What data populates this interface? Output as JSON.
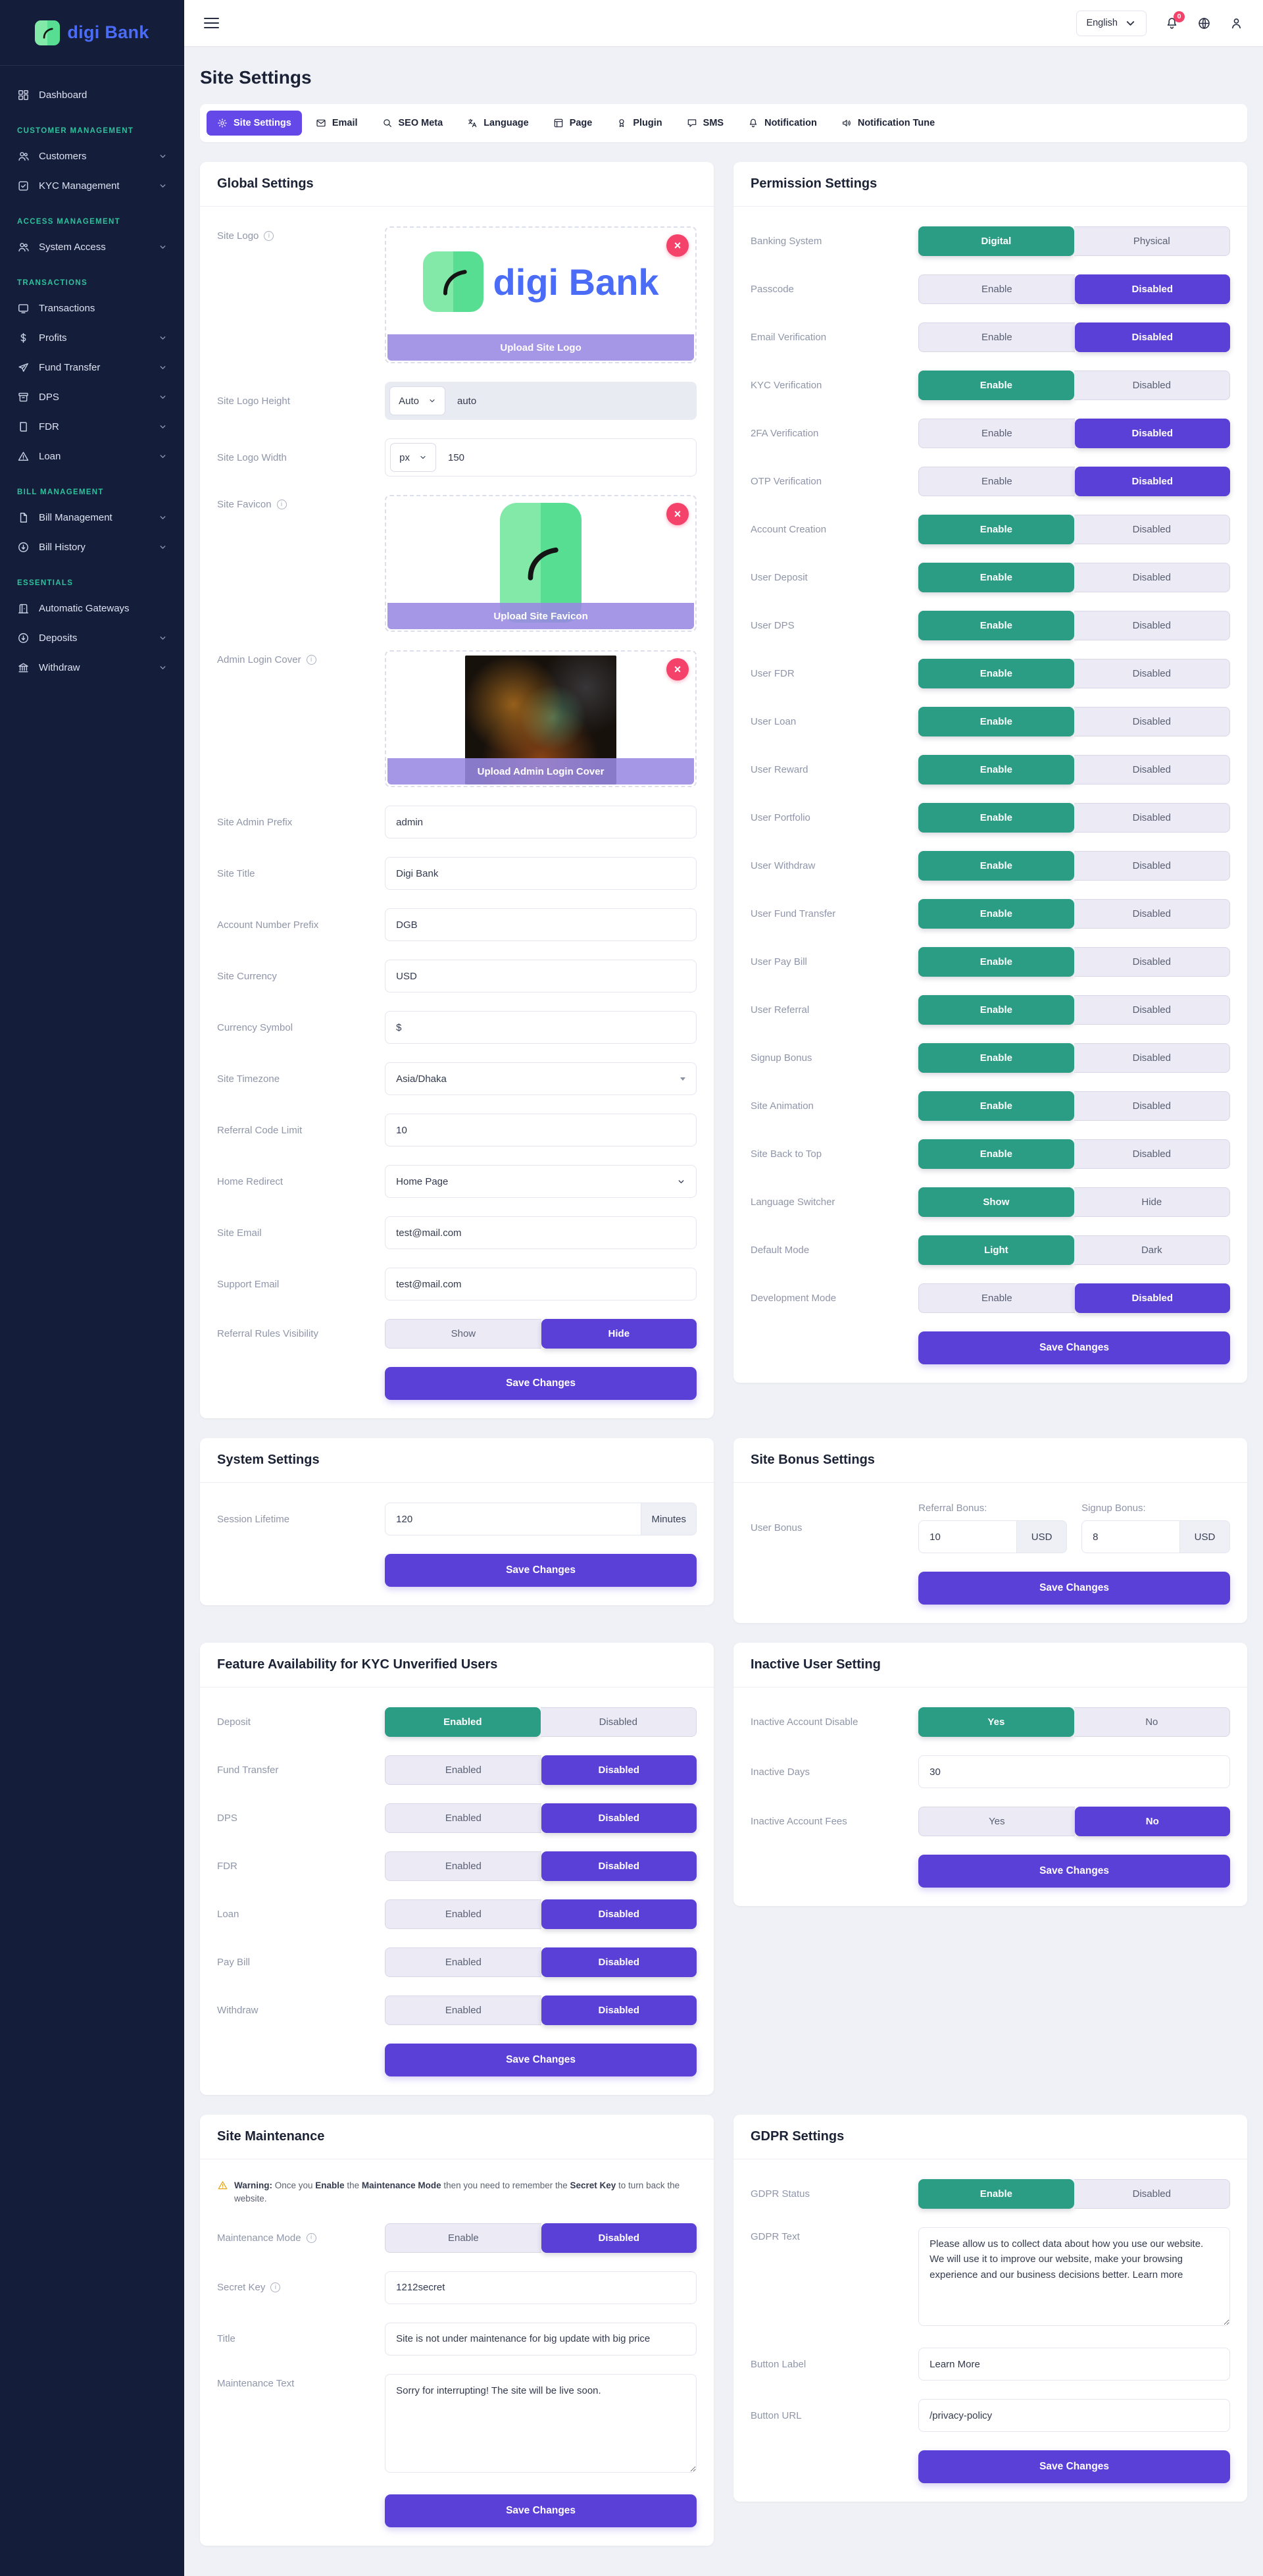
{
  "colors": {
    "accent_purple": "#5b40d8",
    "accent_green": "#2a9d84",
    "brand_blue": "#4a6cf7",
    "danger_red": "#f4426b",
    "section_teal": "#2fc09c",
    "active_tab_purple": "#6448e8"
  },
  "sidebar": {
    "brand": "digi Bank",
    "sections": [
      {
        "header": null,
        "items": [
          {
            "label": "Dashboard",
            "icon": "dashboard",
            "chevron": false
          }
        ]
      },
      {
        "header": "CUSTOMER MANAGEMENT",
        "items": [
          {
            "label": "Customers",
            "icon": "users",
            "chevron": true
          },
          {
            "label": "KYC Management",
            "icon": "kyc",
            "chevron": true
          }
        ]
      },
      {
        "header": "ACCESS MANAGEMENT",
        "items": [
          {
            "label": "System Access",
            "icon": "users",
            "chevron": true
          }
        ]
      },
      {
        "header": "TRANSACTIONS",
        "items": [
          {
            "label": "Transactions",
            "icon": "screen",
            "chevron": false
          },
          {
            "label": "Profits",
            "icon": "dollar",
            "chevron": true
          },
          {
            "label": "Fund Transfer",
            "icon": "send",
            "chevron": true
          },
          {
            "label": "DPS",
            "icon": "archive",
            "chevron": true
          },
          {
            "label": "FDR",
            "icon": "book",
            "chevron": true
          },
          {
            "label": "Loan",
            "icon": "alert",
            "chevron": true
          }
        ]
      },
      {
        "header": "BILL MANAGEMENT",
        "items": [
          {
            "label": "Bill Management",
            "icon": "file",
            "chevron": true
          },
          {
            "label": "Bill History",
            "icon": "download",
            "chevron": true
          }
        ]
      },
      {
        "header": "ESSENTIALS",
        "items": [
          {
            "label": "Automatic Gateways",
            "icon": "gateway",
            "chevron": false
          },
          {
            "label": "Deposits",
            "icon": "download",
            "chevron": true
          },
          {
            "label": "Withdraw",
            "icon": "bank",
            "chevron": true
          }
        ]
      }
    ]
  },
  "topbar": {
    "language": "English",
    "notification_badge": "0"
  },
  "page": {
    "title": "Site Settings"
  },
  "tabs": [
    {
      "label": "Site Settings",
      "icon": "gear",
      "active": true
    },
    {
      "label": "Email",
      "icon": "mail",
      "active": false
    },
    {
      "label": "SEO Meta",
      "icon": "seo",
      "active": false
    },
    {
      "label": "Language",
      "icon": "translate",
      "active": false
    },
    {
      "label": "Page",
      "icon": "page",
      "active": false
    },
    {
      "label": "Plugin",
      "icon": "plugin",
      "active": false
    },
    {
      "label": "SMS",
      "icon": "sms",
      "active": false
    },
    {
      "label": "Notification",
      "icon": "bell",
      "active": false
    },
    {
      "label": "Notification Tune",
      "icon": "speaker",
      "active": false
    }
  ],
  "rows": [
    {
      "left": {
        "title": "Global Settings",
        "save": "Save Changes",
        "fields": [
          {
            "type": "upload",
            "variant": "logo",
            "label": "Site Logo",
            "info": true,
            "ribbon": "Upload Site Logo",
            "preview_text": "digi Bank"
          },
          {
            "type": "unit",
            "label": "Site Logo Height",
            "select": "Auto",
            "value": "auto",
            "disabled": true
          },
          {
            "type": "unit",
            "label": "Site Logo Width",
            "select": "px",
            "value": "150",
            "disabled": false
          },
          {
            "type": "upload",
            "variant": "favicon",
            "label": "Site Favicon",
            "info": true,
            "ribbon": "Upload Site Favicon"
          },
          {
            "type": "upload",
            "variant": "cover",
            "label": "Admin Login Cover",
            "info": true,
            "ribbon": "Upload Admin Login Cover"
          },
          {
            "type": "text",
            "label": "Site Admin Prefix",
            "value": "admin"
          },
          {
            "type": "text",
            "label": "Site Title",
            "value": "Digi Bank"
          },
          {
            "type": "text",
            "label": "Account Number Prefix",
            "value": "DGB"
          },
          {
            "type": "text",
            "label": "Site Currency",
            "value": "USD"
          },
          {
            "type": "text",
            "label": "Currency Symbol",
            "value": "$"
          },
          {
            "type": "select2",
            "label": "Site Timezone",
            "value": "Asia/Dhaka"
          },
          {
            "type": "text",
            "label": "Referral Code Limit",
            "value": "10"
          },
          {
            "type": "select",
            "label": "Home Redirect",
            "value": "Home Page"
          },
          {
            "type": "text",
            "label": "Site Email",
            "value": "test@mail.com"
          },
          {
            "type": "text",
            "label": "Support Email",
            "value": "test@mail.com"
          },
          {
            "type": "toggle",
            "label": "Referral Rules Visibility",
            "options": [
              "Show",
              "Hide"
            ],
            "active": 1,
            "color": "purple"
          }
        ]
      },
      "right": {
        "title": "Permission Settings",
        "save": "Save Changes",
        "fields": [
          {
            "type": "toggle",
            "label": "Banking System",
            "options": [
              "Digital",
              "Physical"
            ],
            "active": 0,
            "color": "green"
          },
          {
            "type": "toggle",
            "label": "Passcode",
            "options": [
              "Enable",
              "Disabled"
            ],
            "active": 1,
            "color": "purple"
          },
          {
            "type": "toggle",
            "label": "Email Verification",
            "options": [
              "Enable",
              "Disabled"
            ],
            "active": 1,
            "color": "purple"
          },
          {
            "type": "toggle",
            "label": "KYC Verification",
            "options": [
              "Enable",
              "Disabled"
            ],
            "active": 0,
            "color": "green"
          },
          {
            "type": "toggle",
            "label": "2FA Verification",
            "options": [
              "Enable",
              "Disabled"
            ],
            "active": 1,
            "color": "purple"
          },
          {
            "type": "toggle",
            "label": "OTP Verification",
            "options": [
              "Enable",
              "Disabled"
            ],
            "active": 1,
            "color": "purple"
          },
          {
            "type": "toggle",
            "label": "Account Creation",
            "options": [
              "Enable",
              "Disabled"
            ],
            "active": 0,
            "color": "green"
          },
          {
            "type": "toggle",
            "label": "User Deposit",
            "options": [
              "Enable",
              "Disabled"
            ],
            "active": 0,
            "color": "green"
          },
          {
            "type": "toggle",
            "label": "User DPS",
            "options": [
              "Enable",
              "Disabled"
            ],
            "active": 0,
            "color": "green"
          },
          {
            "type": "toggle",
            "label": "User FDR",
            "options": [
              "Enable",
              "Disabled"
            ],
            "active": 0,
            "color": "green"
          },
          {
            "type": "toggle",
            "label": "User Loan",
            "options": [
              "Enable",
              "Disabled"
            ],
            "active": 0,
            "color": "green"
          },
          {
            "type": "toggle",
            "label": "User Reward",
            "options": [
              "Enable",
              "Disabled"
            ],
            "active": 0,
            "color": "green"
          },
          {
            "type": "toggle",
            "label": "User Portfolio",
            "options": [
              "Enable",
              "Disabled"
            ],
            "active": 0,
            "color": "green"
          },
          {
            "type": "toggle",
            "label": "User Withdraw",
            "options": [
              "Enable",
              "Disabled"
            ],
            "active": 0,
            "color": "green"
          },
          {
            "type": "toggle",
            "label": "User Fund Transfer",
            "options": [
              "Enable",
              "Disabled"
            ],
            "active": 0,
            "color": "green"
          },
          {
            "type": "toggle",
            "label": "User Pay Bill",
            "options": [
              "Enable",
              "Disabled"
            ],
            "active": 0,
            "color": "green"
          },
          {
            "type": "toggle",
            "label": "User Referral",
            "options": [
              "Enable",
              "Disabled"
            ],
            "active": 0,
            "color": "green"
          },
          {
            "type": "toggle",
            "label": "Signup Bonus",
            "options": [
              "Enable",
              "Disabled"
            ],
            "active": 0,
            "color": "green"
          },
          {
            "type": "toggle",
            "label": "Site Animation",
            "options": [
              "Enable",
              "Disabled"
            ],
            "active": 0,
            "color": "green"
          },
          {
            "type": "toggle",
            "label": "Site Back to Top",
            "options": [
              "Enable",
              "Disabled"
            ],
            "active": 0,
            "color": "green"
          },
          {
            "type": "toggle",
            "label": "Language Switcher",
            "options": [
              "Show",
              "Hide"
            ],
            "active": 0,
            "color": "green"
          },
          {
            "type": "toggle",
            "label": "Default Mode",
            "options": [
              "Light",
              "Dark"
            ],
            "active": 0,
            "color": "green"
          },
          {
            "type": "toggle",
            "label": "Development Mode",
            "options": [
              "Enable",
              "Disabled"
            ],
            "active": 1,
            "color": "purple"
          }
        ]
      }
    },
    {
      "left": {
        "title": "System Settings",
        "save": "Save Changes",
        "fields": [
          {
            "type": "addon",
            "label": "Session Lifetime",
            "value": "120",
            "addon": "Minutes"
          }
        ]
      },
      "right": {
        "title": "Site Bonus Settings",
        "save": "Save Changes",
        "fields": [
          {
            "type": "bonus",
            "label": "User Bonus",
            "items": [
              {
                "sub": "Referral Bonus:",
                "value": "10",
                "addon": "USD"
              },
              {
                "sub": "Signup Bonus:",
                "value": "8",
                "addon": "USD"
              }
            ]
          }
        ]
      }
    },
    {
      "left": {
        "title": "Feature Availability for KYC Unverified Users",
        "save": "Save Changes",
        "fields": [
          {
            "type": "toggle",
            "label": "Deposit",
            "options": [
              "Enabled",
              "Disabled"
            ],
            "active": 0,
            "color": "green"
          },
          {
            "type": "toggle",
            "label": "Fund Transfer",
            "options": [
              "Enabled",
              "Disabled"
            ],
            "active": 1,
            "color": "purple"
          },
          {
            "type": "toggle",
            "label": "DPS",
            "options": [
              "Enabled",
              "Disabled"
            ],
            "active": 1,
            "color": "purple"
          },
          {
            "type": "toggle",
            "label": "FDR",
            "options": [
              "Enabled",
              "Disabled"
            ],
            "active": 1,
            "color": "purple"
          },
          {
            "type": "toggle",
            "label": "Loan",
            "options": [
              "Enabled",
              "Disabled"
            ],
            "active": 1,
            "color": "purple"
          },
          {
            "type": "toggle",
            "label": "Pay Bill",
            "options": [
              "Enabled",
              "Disabled"
            ],
            "active": 1,
            "color": "purple"
          },
          {
            "type": "toggle",
            "label": "Withdraw",
            "options": [
              "Enabled",
              "Disabled"
            ],
            "active": 1,
            "color": "purple"
          }
        ]
      },
      "right": {
        "title": "Inactive User Setting",
        "save": "Save Changes",
        "fields": [
          {
            "type": "toggle",
            "label": "Inactive Account Disable",
            "options": [
              "Yes",
              "No"
            ],
            "active": 0,
            "color": "green"
          },
          {
            "type": "text",
            "label": "Inactive Days",
            "value": "30"
          },
          {
            "type": "toggle",
            "label": "Inactive Account Fees",
            "options": [
              "Yes",
              "No"
            ],
            "active": 1,
            "color": "purple"
          }
        ]
      }
    },
    {
      "left": {
        "title": "Site Maintenance",
        "save": "Save Changes",
        "fields": [
          {
            "type": "note",
            "parts": [
              {
                "t": "Warning: ",
                "b": true
              },
              {
                "t": "Once you ",
                "b": false
              },
              {
                "t": "Enable",
                "b": true
              },
              {
                "t": " the ",
                "b": false
              },
              {
                "t": "Maintenance Mode",
                "b": true
              },
              {
                "t": " then you need to remember the ",
                "b": false
              },
              {
                "t": "Secret Key",
                "b": true
              },
              {
                "t": " to turn back the website.",
                "b": false
              }
            ]
          },
          {
            "type": "toggle",
            "label": "Maintenance Mode",
            "info": true,
            "options": [
              "Enable",
              "Disabled"
            ],
            "active": 1,
            "color": "purple"
          },
          {
            "type": "text",
            "label": "Secret Key",
            "info": true,
            "value": "1212secret"
          },
          {
            "type": "text",
            "label": "Title",
            "value": "Site is not under maintenance for big update with big price"
          },
          {
            "type": "textarea",
            "label": "Maintenance Text",
            "value": "Sorry for interrupting! The site will be live soon."
          }
        ]
      },
      "right": {
        "title": "GDPR Settings",
        "save": "Save Changes",
        "fields": [
          {
            "type": "toggle",
            "label": "GDPR Status",
            "options": [
              "Enable",
              "Disabled"
            ],
            "active": 0,
            "color": "green"
          },
          {
            "type": "textarea",
            "label": "GDPR Text",
            "value": "Please allow us to collect data about how you use our website. We will use it to improve our website, make your browsing experience and our business decisions better. Learn more"
          },
          {
            "type": "text",
            "label": "Button Label",
            "value": "Learn More"
          },
          {
            "type": "text",
            "label": "Button URL",
            "value": "/privacy-policy"
          }
        ]
      }
    }
  ]
}
